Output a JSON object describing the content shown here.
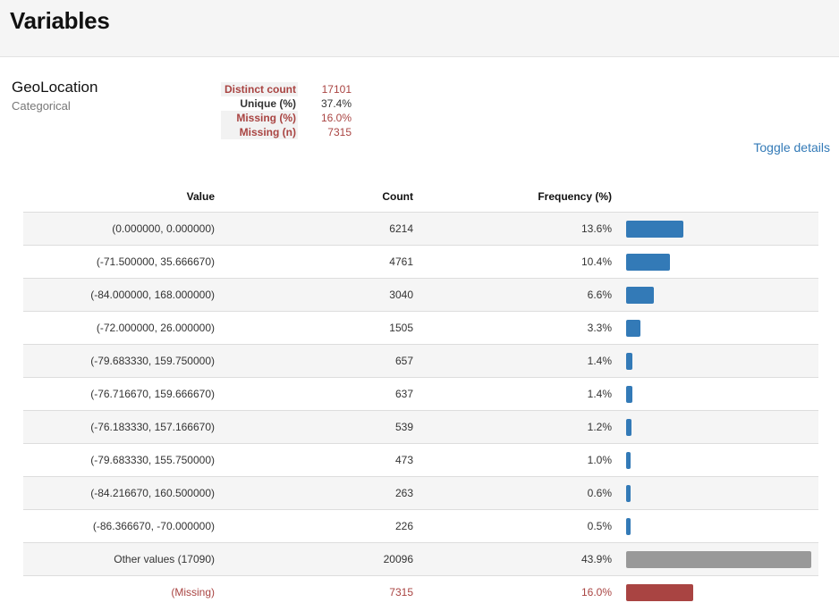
{
  "header": {
    "title": "Variables"
  },
  "variable": {
    "name": "GeoLocation",
    "type": "Categorical",
    "toggle_label": "Toggle details"
  },
  "stats": [
    {
      "label": "Distinct count",
      "value": "17101",
      "alert": true
    },
    {
      "label": "Unique (%)",
      "value": "37.4%",
      "alert": false
    },
    {
      "label": "Missing (%)",
      "value": "16.0%",
      "alert": true
    },
    {
      "label": "Missing (n)",
      "value": "7315",
      "alert": true
    }
  ],
  "frequency_table": {
    "headers": {
      "value": "Value",
      "count": "Count",
      "frequency": "Frequency (%)"
    },
    "rows": [
      {
        "value": "(0.000000, 0.000000)",
        "count": "6214",
        "pct": "13.6%",
        "pct_num": 13.6,
        "kind": "normal"
      },
      {
        "value": "(-71.500000, 35.666670)",
        "count": "4761",
        "pct": "10.4%",
        "pct_num": 10.4,
        "kind": "normal"
      },
      {
        "value": "(-84.000000, 168.000000)",
        "count": "3040",
        "pct": "6.6%",
        "pct_num": 6.6,
        "kind": "normal"
      },
      {
        "value": "(-72.000000, 26.000000)",
        "count": "1505",
        "pct": "3.3%",
        "pct_num": 3.3,
        "kind": "normal"
      },
      {
        "value": "(-79.683330, 159.750000)",
        "count": "657",
        "pct": "1.4%",
        "pct_num": 1.4,
        "kind": "normal"
      },
      {
        "value": "(-76.716670, 159.666670)",
        "count": "637",
        "pct": "1.4%",
        "pct_num": 1.4,
        "kind": "normal"
      },
      {
        "value": "(-76.183330, 157.166670)",
        "count": "539",
        "pct": "1.2%",
        "pct_num": 1.2,
        "kind": "normal"
      },
      {
        "value": "(-79.683330, 155.750000)",
        "count": "473",
        "pct": "1.0%",
        "pct_num": 1.0,
        "kind": "normal"
      },
      {
        "value": "(-84.216670, 160.500000)",
        "count": "263",
        "pct": "0.6%",
        "pct_num": 0.6,
        "kind": "normal"
      },
      {
        "value": "(-86.366670, -70.000000)",
        "count": "226",
        "pct": "0.5%",
        "pct_num": 0.5,
        "kind": "normal"
      },
      {
        "value": "Other values (17090)",
        "count": "20096",
        "pct": "43.9%",
        "pct_num": 43.9,
        "kind": "other"
      },
      {
        "value": "(Missing)",
        "count": "7315",
        "pct": "16.0%",
        "pct_num": 16.0,
        "kind": "missing"
      }
    ]
  },
  "colors": {
    "bar": "#337ab7",
    "other_bar": "#999999",
    "missing_bar": "#a94442",
    "alert_text": "#a94442",
    "link": "#337ab7"
  }
}
